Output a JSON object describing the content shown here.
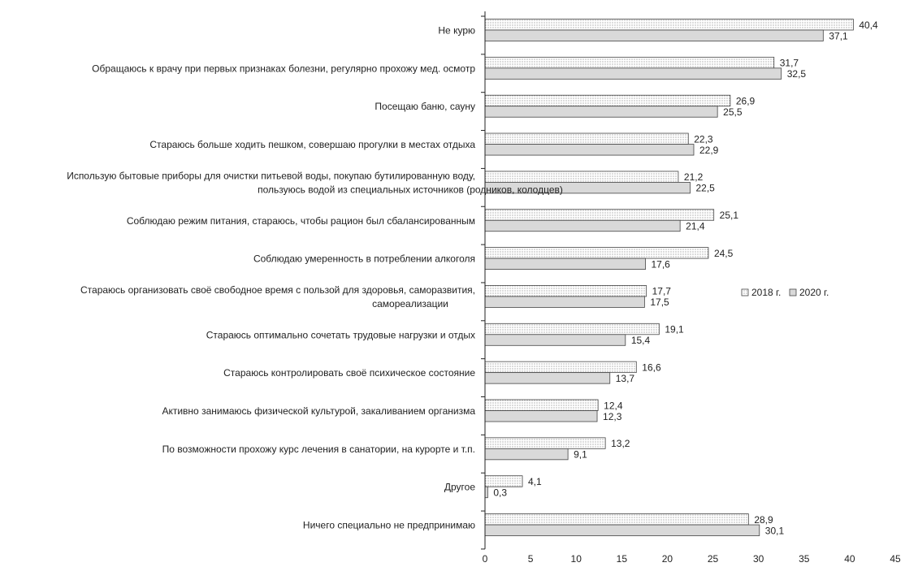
{
  "chart_data": {
    "type": "bar",
    "orientation": "horizontal",
    "categories": [
      [
        "Не курю"
      ],
      [
        "Обращаюсь к врачу при первых признаках болезни, регулярно прохожу мед. осмотр"
      ],
      [
        "Посещаю баню, сауну"
      ],
      [
        "Стараюсь больше ходить пешком, совершаю прогулки в местах отдыха"
      ],
      [
        "Использую бытовые приборы для очистки питьевой воды, покупаю бутилированную воду,",
        "пользуюсь водой из специальных источников (родников, колодцев)"
      ],
      [
        "Соблюдаю режим питания, стараюсь, чтобы рацион был сбалансированным"
      ],
      [
        "Соблюдаю умеренность в потреблении алкоголя"
      ],
      [
        "Стараюсь организовать своё свободное время с пользой для здоровья, саморазвития,",
        "самореализации"
      ],
      [
        "Стараюсь оптимально сочетать трудовые нагрузки и отдых"
      ],
      [
        "Стараюсь контролировать своё психическое состояние"
      ],
      [
        "Активно занимаюсь физической культурой, закаливанием организма"
      ],
      [
        "По возможности прохожу курс лечения в санатории, на курорте и т.п."
      ],
      [
        "Другое"
      ],
      [
        "Ничего специально не предпринимаю"
      ]
    ],
    "series": [
      {
        "name": "2018 г.",
        "values": [
          40.4,
          31.7,
          26.9,
          22.3,
          21.2,
          25.1,
          24.5,
          17.7,
          19.1,
          16.6,
          12.4,
          13.2,
          4.1,
          28.9
        ],
        "labels": [
          "40,4",
          "31,7",
          "26,9",
          "22,3",
          "21,2",
          "25,1",
          "24,5",
          "17,7",
          "19,1",
          "16,6",
          "12,4",
          "13,2",
          "4,1",
          "28,9"
        ]
      },
      {
        "name": "2020 г.",
        "values": [
          37.1,
          32.5,
          25.5,
          22.9,
          22.5,
          21.4,
          17.6,
          17.5,
          15.4,
          13.7,
          12.3,
          9.1,
          0.3,
          30.1
        ],
        "labels": [
          "37,1",
          "32,5",
          "25,5",
          "22,9",
          "22,5",
          "21,4",
          "17,6",
          "17,5",
          "15,4",
          "13,7",
          "12,3",
          "9,1",
          "0,3",
          "30,1"
        ]
      }
    ],
    "xlim": [
      0,
      45
    ],
    "xticks": [
      0,
      5,
      10,
      15,
      20,
      25,
      30,
      35,
      40,
      45
    ],
    "xlabel": "",
    "ylabel": "",
    "title": "",
    "grid": false,
    "legend_position": "right",
    "colors": {
      "series_2018_fill": "#ffffff",
      "series_2018_dots": "#555555",
      "series_2020_fill": "#d9d9d9",
      "bar_stroke": "#444444",
      "axis": "#222222"
    }
  }
}
